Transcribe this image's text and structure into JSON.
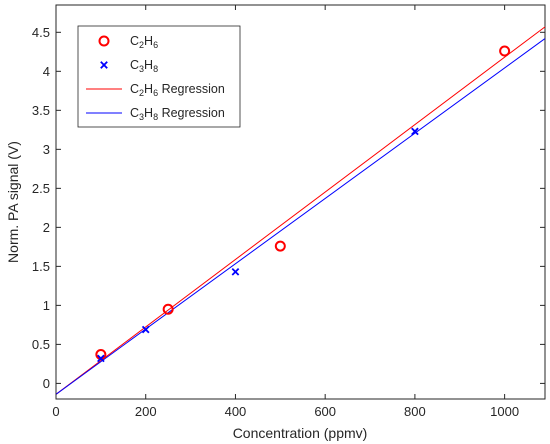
{
  "chart_data": {
    "type": "scatter",
    "xlabel": "Concentration (ppmv)",
    "ylabel": "Norm. PA signal (V)",
    "xlim": [
      0,
      1090
    ],
    "ylim": [
      -0.2,
      4.85
    ],
    "xticks": [
      0,
      200,
      400,
      600,
      800,
      1000
    ],
    "xtick_labels": [
      "0",
      "200",
      "400",
      "600",
      "800",
      "1000"
    ],
    "yticks": [
      0,
      0.5,
      1,
      1.5,
      2,
      2.5,
      3,
      3.5,
      4,
      4.5
    ],
    "ytick_labels": [
      "0",
      "0.5",
      "1",
      "1.5",
      "2",
      "2.5",
      "3",
      "3.5",
      "4",
      "4.5"
    ],
    "grid": false,
    "legend_position": "top-left",
    "series": [
      {
        "name": "C2H6",
        "name_parts": {
          "base": "C",
          "sub1": "2",
          "mid": "H",
          "sub2": "6",
          "suffix": ""
        },
        "marker": "circle",
        "color": "#ff0000",
        "x": [
          100,
          250,
          500,
          1000
        ],
        "y": [
          0.37,
          0.95,
          1.76,
          4.26
        ]
      },
      {
        "name": "C3H8",
        "name_parts": {
          "base": "C",
          "sub1": "3",
          "mid": "H",
          "sub2": "8",
          "suffix": ""
        },
        "marker": "x",
        "color": "#0000ff",
        "x": [
          100,
          200,
          400,
          800
        ],
        "y": [
          0.32,
          0.69,
          1.43,
          3.23
        ]
      },
      {
        "name": "C2H6 Regression",
        "name_parts": {
          "base": "C",
          "sub1": "2",
          "mid": "H",
          "sub2": "6",
          "suffix": " Regression"
        },
        "marker": "line",
        "color": "#ff0000",
        "x": [
          0,
          1090
        ],
        "y": [
          -0.14,
          4.57
        ]
      },
      {
        "name": "C3H8 Regression",
        "name_parts": {
          "base": "C",
          "sub1": "3",
          "mid": "H",
          "sub2": "8",
          "suffix": " Regression"
        },
        "marker": "line",
        "color": "#0000ff",
        "x": [
          0,
          1090
        ],
        "y": [
          -0.14,
          4.42
        ]
      }
    ]
  }
}
